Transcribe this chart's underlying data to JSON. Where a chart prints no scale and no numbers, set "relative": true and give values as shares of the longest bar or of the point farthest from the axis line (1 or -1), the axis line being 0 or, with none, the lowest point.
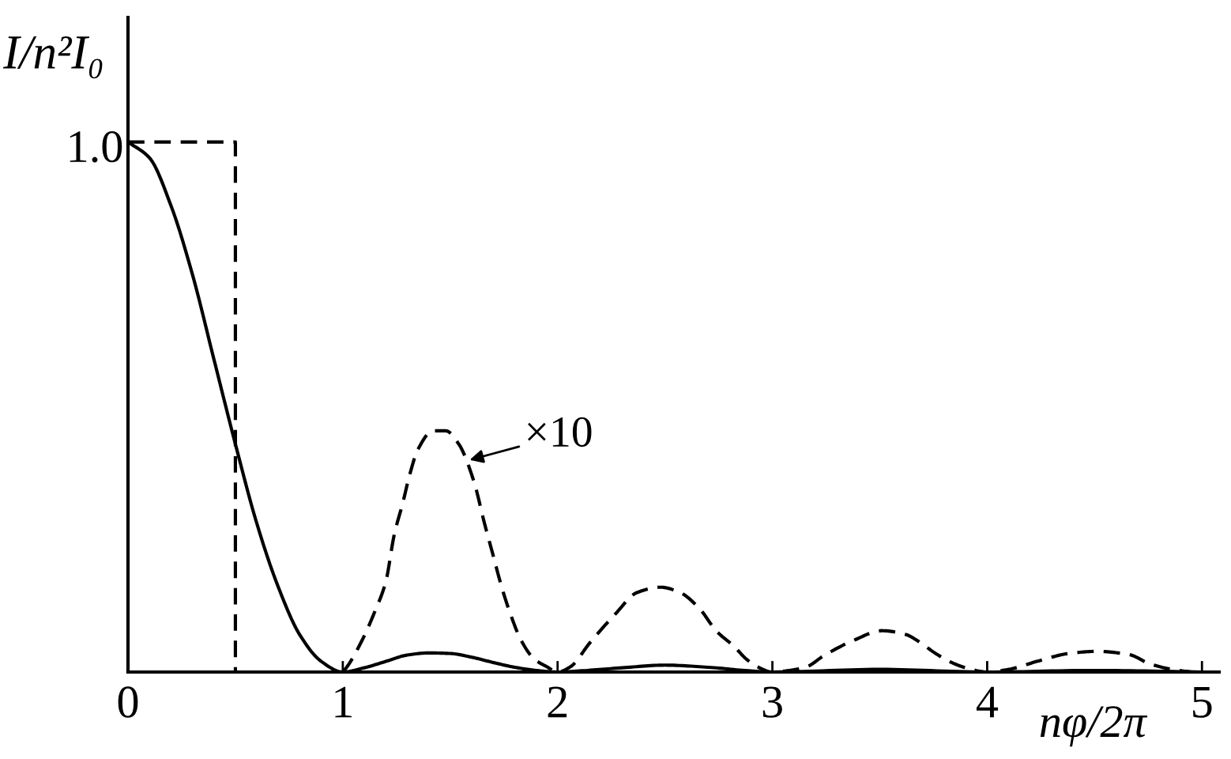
{
  "chart_data": {
    "type": "line",
    "relative": true,
    "xlabel": "nφ/2π",
    "ylabel": "I/n²I₀",
    "xlim": [
      0,
      5.08
    ],
    "xticks": [
      0,
      1,
      2,
      3,
      4,
      5
    ],
    "annotations": [
      {
        "text": "1.0",
        "x": 0,
        "y": 1.0
      },
      {
        "text": "×10",
        "x": 1.59,
        "y": 0.4
      }
    ],
    "series": [
      {
        "color": "#000000",
        "line_style": "solid",
        "x": [
          0,
          0.1,
          0.2,
          0.3,
          0.4,
          0.5,
          0.6,
          0.7,
          0.8,
          0.9,
          1.0,
          1.1,
          1.2,
          1.3,
          1.4,
          1.5,
          1.6,
          1.7,
          1.8,
          1.9,
          2.0,
          2.1,
          2.3,
          2.5,
          2.7,
          2.9,
          3.0,
          3.5,
          4.0,
          4.5,
          5.0
        ],
        "values": [
          1.0,
          0.97,
          0.88,
          0.75,
          0.59,
          0.43,
          0.28,
          0.16,
          0.07,
          0.02,
          0.0,
          0.008,
          0.02,
          0.032,
          0.036,
          0.035,
          0.028,
          0.018,
          0.009,
          0.003,
          0.0,
          0.002,
          0.008,
          0.013,
          0.009,
          0.002,
          0.0,
          0.005,
          0.0,
          0.003,
          0.0
        ]
      },
      {
        "color": "#000000",
        "line_style": "dashed",
        "x": [
          1.0,
          1.02,
          1.09,
          1.15,
          1.2,
          1.24,
          1.28,
          1.31,
          1.35,
          1.42,
          1.48,
          1.54,
          1.61,
          1.66,
          1.7,
          1.74,
          1.78,
          1.83,
          1.89,
          1.95,
          2.0,
          2.06,
          2.15,
          2.27,
          2.37,
          2.48,
          2.57,
          2.66,
          2.74,
          2.82,
          2.88,
          2.93,
          3.0,
          3.08,
          3.16,
          3.24,
          3.38,
          3.51,
          3.62,
          3.68,
          3.76,
          3.84,
          3.9,
          4.0,
          4.1,
          4.24,
          4.38,
          4.51,
          4.66,
          4.76,
          4.86,
          4.95
        ],
        "values": [
          0.0,
          0.01,
          0.06,
          0.115,
          0.17,
          0.26,
          0.32,
          0.37,
          0.42,
          0.455,
          0.455,
          0.43,
          0.36,
          0.28,
          0.22,
          0.16,
          0.11,
          0.06,
          0.025,
          0.01,
          0.0,
          0.01,
          0.055,
          0.11,
          0.15,
          0.16,
          0.15,
          0.12,
          0.077,
          0.049,
          0.024,
          0.01,
          0.0,
          0.003,
          0.01,
          0.031,
          0.06,
          0.078,
          0.071,
          0.058,
          0.035,
          0.017,
          0.008,
          0.0,
          0.005,
          0.021,
          0.035,
          0.039,
          0.033,
          0.015,
          0.005,
          0.0
        ]
      },
      {
        "color": "#000000",
        "line_style": "dashed",
        "x": [
          0,
          0.5,
          0.5
        ],
        "values": [
          1.0,
          1.0,
          0.0
        ]
      }
    ]
  }
}
